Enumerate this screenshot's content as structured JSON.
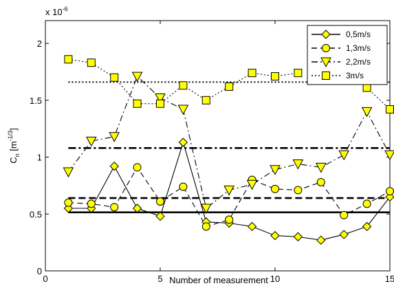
{
  "chart_data": {
    "type": "line",
    "title": "",
    "xlabel": "Number of measurement",
    "ylabel_main": "C",
    "ylabel_sub": "n",
    "ylabel_unit_pre": " [m",
    "ylabel_unit_sup": "-1/3",
    "ylabel_unit_post": "]",
    "y_multiplier_base": "x 10",
    "y_multiplier_exp": "-6",
    "xlim": [
      0,
      15
    ],
    "ylim": [
      0,
      2.2
    ],
    "xticks": [
      0,
      5,
      10,
      15
    ],
    "yticks": [
      0,
      0.5,
      1,
      1.5,
      2
    ],
    "xtick_labels": [
      "0",
      "5",
      "10",
      "15"
    ],
    "ytick_labels": [
      "0",
      "0.5",
      "1",
      "1.5",
      "2"
    ],
    "grid": false,
    "legend_position": "top-right",
    "series": [
      {
        "name": "0,5m/s",
        "line_style": "solid",
        "marker": "diamond",
        "x": [
          1,
          2,
          3,
          4,
          5,
          6,
          7,
          8,
          9,
          10,
          11,
          12,
          13,
          14,
          15
        ],
        "values": [
          0.55,
          0.55,
          0.92,
          0.55,
          0.48,
          1.13,
          0.43,
          0.42,
          0.39,
          0.31,
          0.3,
          0.27,
          0.32,
          0.39,
          0.65
        ]
      },
      {
        "name": "1,3m/s",
        "line_style": "dashed",
        "marker": "circle",
        "x": [
          1,
          2,
          3,
          4,
          5,
          6,
          7,
          8,
          9,
          10,
          11,
          12,
          13,
          14,
          15
        ],
        "values": [
          0.6,
          0.59,
          0.56,
          0.91,
          0.61,
          0.74,
          0.39,
          0.45,
          0.8,
          0.72,
          0.71,
          0.78,
          0.49,
          0.59,
          0.7
        ]
      },
      {
        "name": "2,2m/s",
        "line_style": "dashdot",
        "marker": "triangle-down",
        "x": [
          1,
          2,
          3,
          4,
          5,
          6,
          7,
          8,
          9,
          10,
          11,
          12,
          13,
          14,
          15
        ],
        "values": [
          0.87,
          1.14,
          1.18,
          1.71,
          1.52,
          1.42,
          0.55,
          0.71,
          0.76,
          0.89,
          0.94,
          0.91,
          1.02,
          1.4,
          1.02
        ]
      },
      {
        "name": "3m/s",
        "line_style": "dotted",
        "marker": "square",
        "x": [
          1,
          2,
          3,
          4,
          5,
          6,
          7,
          8,
          9,
          10,
          11,
          12,
          13,
          14,
          15
        ],
        "values": [
          1.86,
          1.83,
          1.7,
          1.47,
          1.47,
          1.63,
          1.5,
          1.62,
          1.74,
          1.71,
          1.74,
          null,
          null,
          1.61,
          1.42
        ]
      }
    ],
    "mean_lines": [
      {
        "series": "0,5m/s",
        "line_style": "solid",
        "value": 0.515
      },
      {
        "series": "1,3m/s",
        "line_style": "dashed",
        "value": 0.64
      },
      {
        "series": "2,2m/s",
        "line_style": "dashdot",
        "value": 1.08
      },
      {
        "series": "3m/s",
        "line_style": "dotted",
        "value": 1.66
      }
    ],
    "colors": {
      "marker_fill": "#ffff00",
      "marker_stroke": "#000000",
      "line": "#000000",
      "background": "#ffffff"
    }
  }
}
